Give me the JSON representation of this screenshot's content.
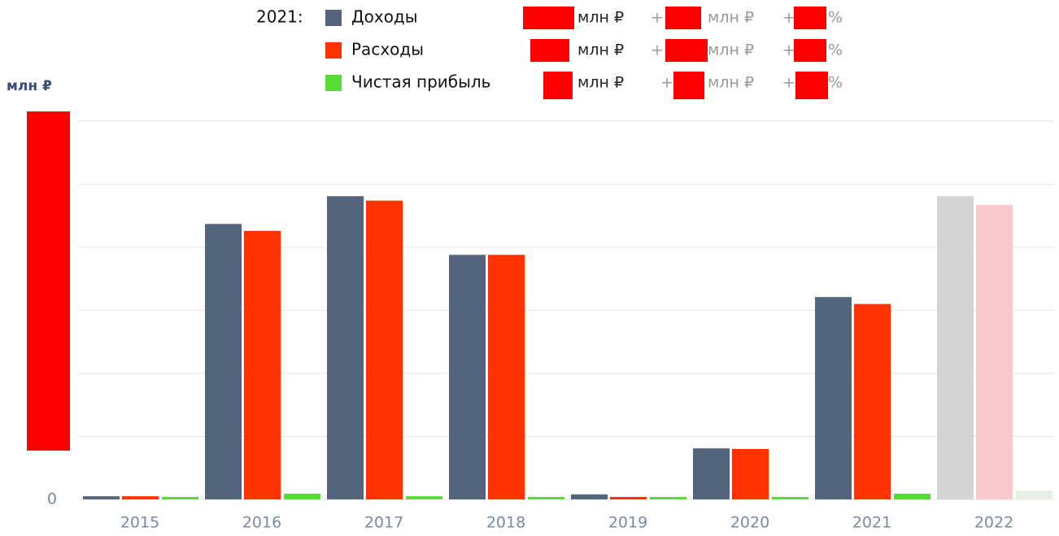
{
  "chart_data": {
    "type": "bar",
    "axis_label": "млн ₽",
    "legend": {
      "year": "2021:",
      "unit": "млн ₽",
      "plus": "+",
      "percent": "%"
    },
    "categories": [
      "2015",
      "2016",
      "2017",
      "2018",
      "2019",
      "2020",
      "2021",
      "2022"
    ],
    "faded": [
      false,
      false,
      false,
      false,
      false,
      false,
      false,
      true
    ],
    "series": [
      {
        "name": "Доходы",
        "color": "#53647c",
        "faded_color": "#d3d4d6",
        "values": [
          0.05,
          4.37,
          4.81,
          3.88,
          0.08,
          0.81,
          3.21,
          4.81
        ]
      },
      {
        "name": "Расходы",
        "color": "#ff3300",
        "faded_color": "#f9c9cb",
        "values": [
          0.05,
          4.26,
          4.74,
          3.88,
          0.04,
          0.8,
          3.1,
          4.67
        ]
      },
      {
        "name": "Чистая прибыль",
        "color": "#55dd33",
        "faded_color": "#e6efe8",
        "values": [
          0.04,
          0.09,
          0.05,
          0.04,
          0.04,
          0.04,
          0.09,
          0.14
        ]
      }
    ],
    "ylim": [
      0,
      6.2
    ],
    "yticks": [
      0,
      1,
      2,
      3,
      4,
      5,
      6
    ],
    "grid": true
  }
}
